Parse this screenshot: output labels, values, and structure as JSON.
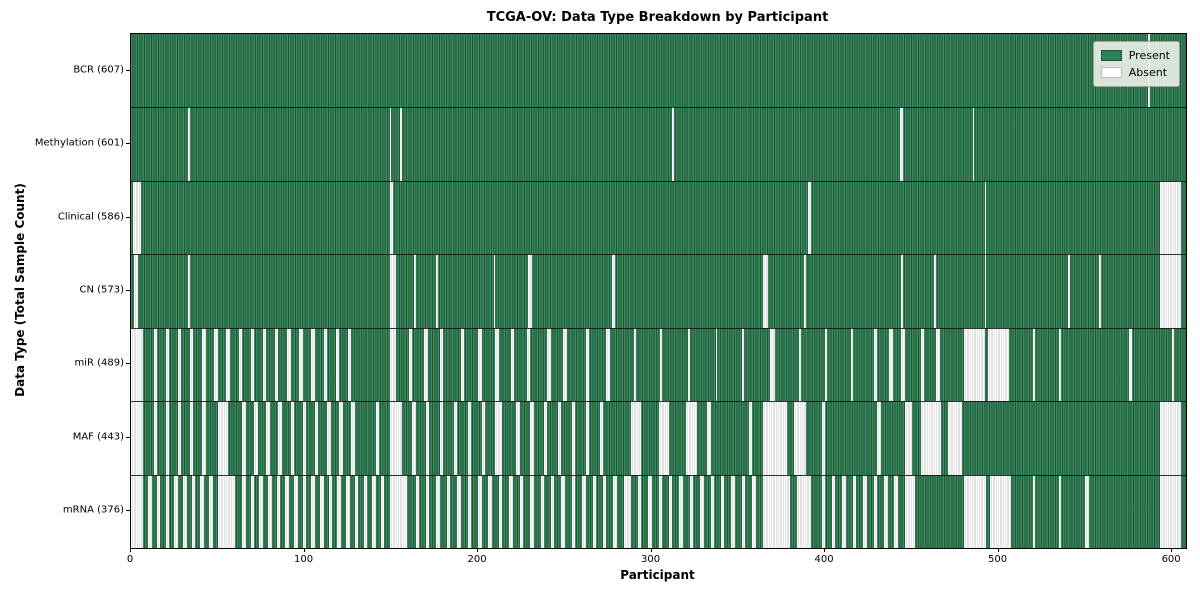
{
  "title": "TCGA-OV: Data Type Breakdown by Participant",
  "xlabel": "Participant",
  "ylabel": "Data Type (Total Sample Count)",
  "legend": {
    "present_label": "Present",
    "absent_label": "Absent",
    "position": "upper right"
  },
  "colors": {
    "present_fill": "#2e7d52",
    "present_edge": "#1d5837",
    "present_light": "#4a966c",
    "absent_fill": "#ffffff",
    "absent_edge": "#c6c6c6",
    "legend_present_swatch": "#2e8057",
    "legend_absent_swatch": "#ffffff"
  },
  "chart_data": {
    "type": "heatmap",
    "title": "TCGA-OV: Data Type Breakdown by Participant",
    "xlabel": "Participant",
    "ylabel": "Data Type (Total Sample Count)",
    "n_participants": 608,
    "xlim": [
      0,
      608
    ],
    "x_ticks": [
      0,
      100,
      200,
      300,
      400,
      500,
      600
    ],
    "grid": false,
    "legend_entries": [
      "Present",
      "Absent"
    ],
    "rows": [
      {
        "label": "BCR (607)",
        "data_type": "BCR",
        "present_count": 607,
        "absent_count": 1,
        "absent_intervals": [
          [
            586,
            586
          ]
        ]
      },
      {
        "label": "Methylation (601)",
        "data_type": "Methylation",
        "present_count": 601,
        "absent_count": 7,
        "absent_intervals": [
          [
            33,
            33
          ],
          [
            149,
            149
          ],
          [
            155,
            155
          ],
          [
            312,
            312
          ],
          [
            443,
            444
          ],
          [
            485,
            485
          ]
        ]
      },
      {
        "label": "Clinical (586)",
        "data_type": "Clinical",
        "present_count": 586,
        "absent_count": 22,
        "absent_intervals": [
          [
            1,
            5
          ],
          [
            149,
            150
          ],
          [
            390,
            391
          ],
          [
            492,
            492
          ],
          [
            593,
            604
          ]
        ]
      },
      {
        "label": "CN (573)",
        "data_type": "CN",
        "present_count": 573,
        "absent_count": 35,
        "absent_intervals": [
          [
            2,
            3
          ],
          [
            33,
            33
          ],
          [
            149,
            152
          ],
          [
            163,
            163
          ],
          [
            176,
            176
          ],
          [
            209,
            209
          ],
          [
            229,
            230
          ],
          [
            277,
            278
          ],
          [
            364,
            366
          ],
          [
            388,
            388
          ],
          [
            444,
            444
          ],
          [
            463,
            463
          ],
          [
            492,
            492
          ],
          [
            540,
            540
          ],
          [
            558,
            558
          ],
          [
            593,
            604
          ]
        ]
      },
      {
        "label": "miR (489)",
        "data_type": "miR",
        "present_count": 489,
        "absent_count": 119,
        "absent_intervals": [
          [
            0,
            6
          ],
          [
            13,
            14
          ],
          [
            20,
            21
          ],
          [
            27,
            28
          ],
          [
            34,
            35
          ],
          [
            41,
            42
          ],
          [
            48,
            49
          ],
          [
            55,
            56
          ],
          [
            62,
            63
          ],
          [
            69,
            70
          ],
          [
            76,
            77
          ],
          [
            83,
            84
          ],
          [
            90,
            91
          ],
          [
            97,
            98
          ],
          [
            104,
            105
          ],
          [
            111,
            112
          ],
          [
            118,
            119
          ],
          [
            125,
            126
          ],
          [
            149,
            152
          ],
          [
            160,
            161
          ],
          [
            169,
            170
          ],
          [
            178,
            179
          ],
          [
            190,
            191
          ],
          [
            200,
            201
          ],
          [
            210,
            211
          ],
          [
            219,
            220
          ],
          [
            228,
            229
          ],
          [
            240,
            241
          ],
          [
            249,
            250
          ],
          [
            262,
            263
          ],
          [
            274,
            275
          ],
          [
            290,
            290
          ],
          [
            305,
            305
          ],
          [
            321,
            321
          ],
          [
            337,
            337
          ],
          [
            352,
            352
          ],
          [
            368,
            370
          ],
          [
            385,
            385
          ],
          [
            400,
            400
          ],
          [
            415,
            415
          ],
          [
            428,
            429
          ],
          [
            437,
            438
          ],
          [
            444,
            445
          ],
          [
            455,
            456
          ],
          [
            464,
            465
          ],
          [
            480,
            491
          ],
          [
            494,
            505
          ],
          [
            520,
            520
          ],
          [
            535,
            535
          ],
          [
            575,
            576
          ],
          [
            600,
            600
          ]
        ]
      },
      {
        "label": "MAF (443)",
        "data_type": "MAF",
        "present_count": 443,
        "absent_count": 165,
        "absent_intervals": [
          [
            0,
            6
          ],
          [
            13,
            14
          ],
          [
            20,
            21
          ],
          [
            27,
            28
          ],
          [
            34,
            35
          ],
          [
            41,
            42
          ],
          [
            50,
            55
          ],
          [
            64,
            65
          ],
          [
            71,
            72
          ],
          [
            78,
            79
          ],
          [
            85,
            86
          ],
          [
            92,
            93
          ],
          [
            99,
            100
          ],
          [
            106,
            107
          ],
          [
            113,
            114
          ],
          [
            120,
            121
          ],
          [
            127,
            128
          ],
          [
            141,
            142
          ],
          [
            149,
            155
          ],
          [
            162,
            163
          ],
          [
            170,
            171
          ],
          [
            178,
            179
          ],
          [
            186,
            187
          ],
          [
            194,
            195
          ],
          [
            202,
            203
          ],
          [
            210,
            213
          ],
          [
            222,
            223
          ],
          [
            230,
            231
          ],
          [
            238,
            239
          ],
          [
            246,
            247
          ],
          [
            254,
            255
          ],
          [
            262,
            263
          ],
          [
            270,
            271
          ],
          [
            288,
            293
          ],
          [
            304,
            309
          ],
          [
            320,
            325
          ],
          [
            332,
            333
          ],
          [
            356,
            357
          ],
          [
            364,
            377
          ],
          [
            382,
            388
          ],
          [
            398,
            399
          ],
          [
            430,
            431
          ],
          [
            446,
            449
          ],
          [
            455,
            466
          ],
          [
            471,
            478
          ],
          [
            593,
            604
          ]
        ]
      },
      {
        "label": "mRNA (376)",
        "data_type": "mRNA",
        "present_count": 376,
        "absent_count": 232,
        "absent_intervals": [
          [
            0,
            6
          ],
          [
            10,
            11
          ],
          [
            15,
            16
          ],
          [
            20,
            21
          ],
          [
            25,
            26
          ],
          [
            30,
            31
          ],
          [
            35,
            36
          ],
          [
            40,
            41
          ],
          [
            45,
            46
          ],
          [
            50,
            59
          ],
          [
            64,
            65
          ],
          [
            69,
            70
          ],
          [
            74,
            75
          ],
          [
            79,
            80
          ],
          [
            84,
            85
          ],
          [
            89,
            90
          ],
          [
            94,
            95
          ],
          [
            99,
            100
          ],
          [
            104,
            105
          ],
          [
            109,
            110
          ],
          [
            114,
            115
          ],
          [
            119,
            120
          ],
          [
            124,
            125
          ],
          [
            129,
            130
          ],
          [
            134,
            135
          ],
          [
            139,
            140
          ],
          [
            144,
            145
          ],
          [
            149,
            158
          ],
          [
            164,
            165
          ],
          [
            170,
            171
          ],
          [
            176,
            177
          ],
          [
            182,
            183
          ],
          [
            188,
            189
          ],
          [
            194,
            195
          ],
          [
            200,
            201
          ],
          [
            206,
            207
          ],
          [
            212,
            213
          ],
          [
            218,
            219
          ],
          [
            224,
            225
          ],
          [
            230,
            231
          ],
          [
            236,
            237
          ],
          [
            242,
            243
          ],
          [
            248,
            249
          ],
          [
            254,
            255
          ],
          [
            260,
            261
          ],
          [
            266,
            267
          ],
          [
            272,
            273
          ],
          [
            278,
            279
          ],
          [
            284,
            287
          ],
          [
            292,
            293
          ],
          [
            298,
            299
          ],
          [
            304,
            305
          ],
          [
            310,
            311
          ],
          [
            316,
            317
          ],
          [
            322,
            323
          ],
          [
            328,
            329
          ],
          [
            334,
            335
          ],
          [
            340,
            341
          ],
          [
            346,
            347
          ],
          [
            352,
            353
          ],
          [
            358,
            359
          ],
          [
            364,
            379
          ],
          [
            384,
            391
          ],
          [
            398,
            399
          ],
          [
            404,
            405
          ],
          [
            410,
            411
          ],
          [
            416,
            417
          ],
          [
            422,
            423
          ],
          [
            428,
            429
          ],
          [
            434,
            435
          ],
          [
            440,
            441
          ],
          [
            446,
            451
          ],
          [
            480,
            492
          ],
          [
            495,
            506
          ],
          [
            520,
            520
          ],
          [
            535,
            535
          ],
          [
            550,
            551
          ],
          [
            593,
            604
          ]
        ]
      }
    ]
  }
}
